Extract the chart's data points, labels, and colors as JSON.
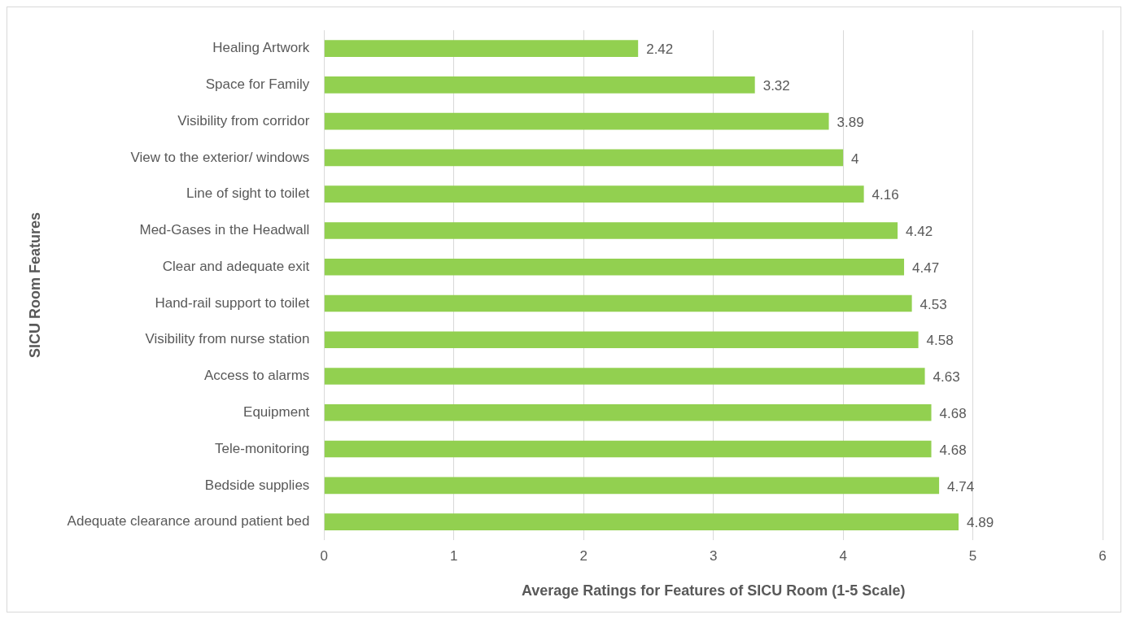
{
  "chart_data": {
    "type": "bar",
    "orientation": "horizontal",
    "xlabel": "Average Ratings for Features of SICU Room (1-5 Scale)",
    "ylabel": "SICU Room Features",
    "categories": [
      "Healing Artwork",
      "Space for Family",
      "Visibility from corridor",
      "View to the exterior/ windows",
      "Line of sight to toilet",
      "Med-Gases in the Headwall",
      "Clear and adequate exit",
      "Hand-rail support to toilet",
      "Visibility from nurse station",
      "Access to alarms",
      "Equipment",
      "Tele-monitoring",
      "Bedside supplies",
      "Adequate clearance around patient bed"
    ],
    "values": [
      2.42,
      3.32,
      3.89,
      4,
      4.16,
      4.42,
      4.47,
      4.53,
      4.58,
      4.63,
      4.68,
      4.68,
      4.74,
      4.89
    ],
    "color": "#92d050",
    "xlim": [
      0,
      6
    ],
    "xticks": [
      0,
      1,
      2,
      3,
      4,
      5,
      6
    ],
    "grid": "x",
    "data_labels": true,
    "legend": false
  }
}
